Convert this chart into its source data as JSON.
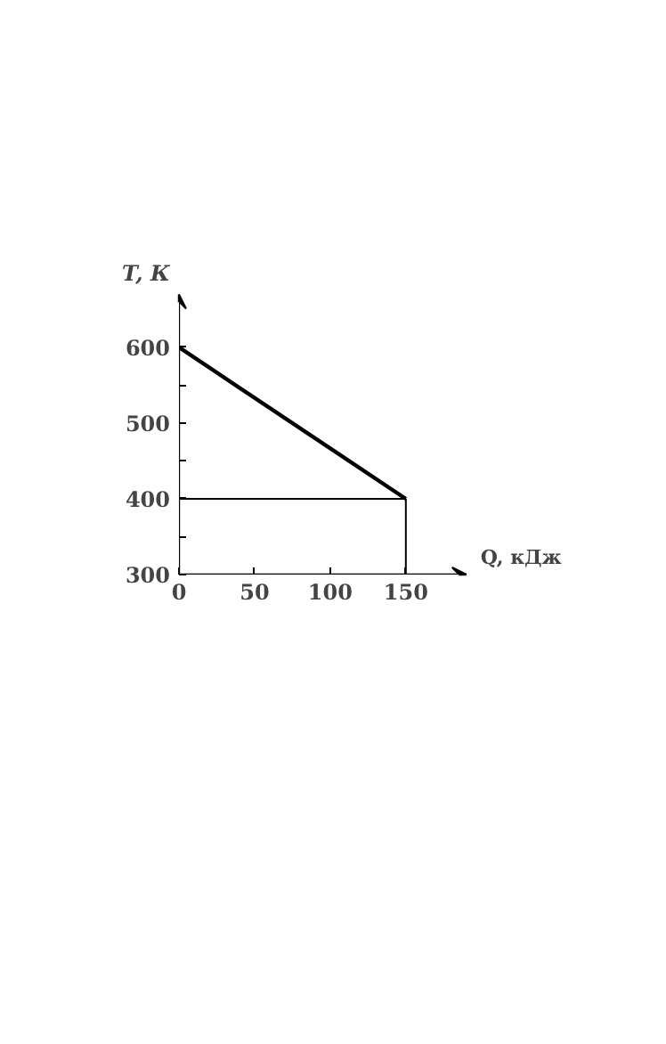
{
  "chart_data": {
    "type": "line",
    "xlabel": "Q, кДж",
    "ylabel": "T, К",
    "x": [
      0,
      150
    ],
    "series": [
      {
        "color": "#000000",
        "values": [
          600,
          400
        ]
      }
    ],
    "xlim": [
      0,
      190
    ],
    "ylim": [
      300,
      670
    ],
    "xticks": [
      0,
      50,
      100,
      150
    ],
    "yticks": [
      300,
      {
        "value": 350,
        "label": null
      },
      400,
      {
        "value": 450,
        "label": null
      },
      500,
      {
        "value": 550,
        "label": null
      },
      600
    ],
    "ref_lines": [
      {
        "axis": "y",
        "value": 400,
        "color": "#000000"
      },
      {
        "axis": "x",
        "value": 150,
        "color": "#000000"
      }
    ],
    "grid": false,
    "marker": "none",
    "line_style": "solid"
  }
}
